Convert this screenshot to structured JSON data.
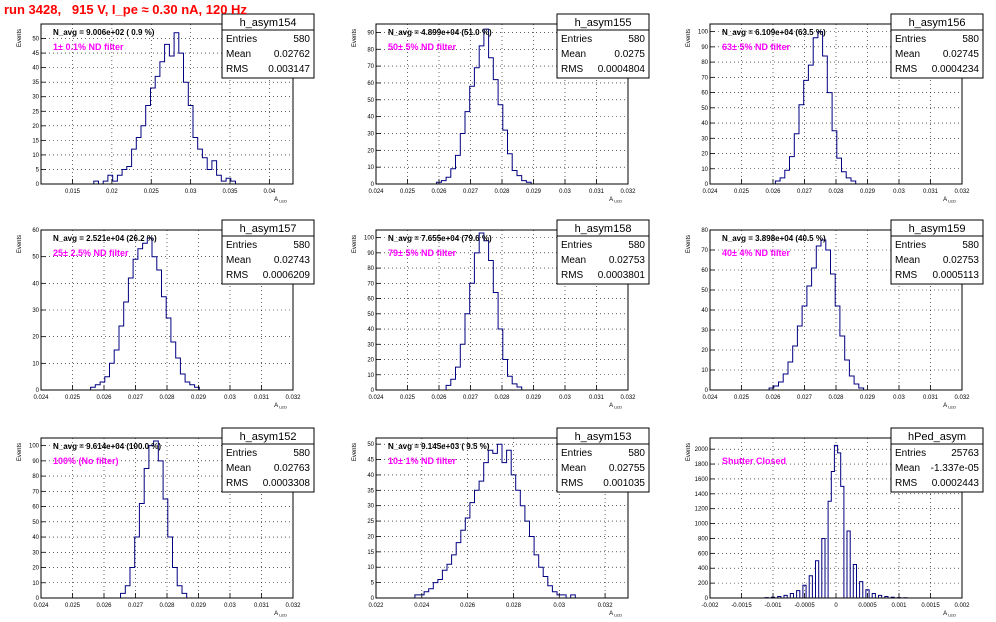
{
  "run_title": "run 3428,   915 V, I_pe ≈ 0.30 nA, 120 Hz",
  "colors": {
    "histogram": "#000080",
    "label": "#ff00ff",
    "title": "#ff0000",
    "grid": "#000000"
  },
  "chart_data": [
    {
      "type": "bar",
      "name": "h_asym154",
      "navg": "N_avg = 9.006e+02 ( 0.9 %)",
      "label": "1± 0.1% ND filter",
      "stats": {
        "entries": "580",
        "mean": "0.02762",
        "rms": "0.003147"
      },
      "ylabel": "Events",
      "xlabel": "A",
      "xlim": [
        0.011,
        0.043
      ],
      "ylim": [
        0,
        55
      ],
      "xticks": [
        "0.015",
        "0.02",
        "0.025",
        "0.03",
        "0.035",
        "0.04"
      ],
      "yticks": [
        "0",
        "5",
        "10",
        "15",
        "20",
        "25",
        "30",
        "35",
        "40",
        "45",
        "50"
      ],
      "grid": true,
      "legend": "top-right",
      "bins": [
        [
          0.018,
          1
        ],
        [
          0.0186,
          0
        ],
        [
          0.0192,
          1
        ],
        [
          0.0198,
          3
        ],
        [
          0.0204,
          1
        ],
        [
          0.021,
          3
        ],
        [
          0.0216,
          5
        ],
        [
          0.0222,
          6
        ],
        [
          0.0228,
          12
        ],
        [
          0.0234,
          16
        ],
        [
          0.024,
          20
        ],
        [
          0.0246,
          27
        ],
        [
          0.0252,
          33
        ],
        [
          0.0258,
          37
        ],
        [
          0.0264,
          42
        ],
        [
          0.027,
          48
        ],
        [
          0.0276,
          44
        ],
        [
          0.0282,
          52
        ],
        [
          0.0288,
          45
        ],
        [
          0.0294,
          35
        ],
        [
          0.03,
          27
        ],
        [
          0.0306,
          16
        ],
        [
          0.0312,
          12
        ],
        [
          0.0318,
          9
        ],
        [
          0.0324,
          5
        ],
        [
          0.033,
          8
        ],
        [
          0.0336,
          3
        ],
        [
          0.0342,
          1
        ],
        [
          0.0348,
          2
        ],
        [
          0.0354,
          1
        ]
      ]
    },
    {
      "type": "bar",
      "name": "h_asym155",
      "navg": "N_avg = 4.899e+04 (51.0 %)",
      "label": "50± 5% ND filter",
      "stats": {
        "entries": "580",
        "mean": "0.0275",
        "rms": "0.0004804"
      },
      "ylabel": "Events",
      "xlabel": "A",
      "xlim": [
        0.024,
        0.032
      ],
      "ylim": [
        0,
        95
      ],
      "xticks": [
        "0.024",
        "0.025",
        "0.026",
        "0.027",
        "0.028",
        "0.029",
        "0.03",
        "0.031",
        "0.032"
      ],
      "yticks": [
        "0",
        "10",
        "20",
        "30",
        "40",
        "50",
        "60",
        "70",
        "80",
        "90"
      ],
      "grid": true,
      "legend": "top-right",
      "bins": [
        [
          0.026,
          1
        ],
        [
          0.02615,
          2
        ],
        [
          0.0263,
          4
        ],
        [
          0.02645,
          9
        ],
        [
          0.0266,
          17
        ],
        [
          0.02675,
          30
        ],
        [
          0.0269,
          43
        ],
        [
          0.02705,
          58
        ],
        [
          0.0272,
          69
        ],
        [
          0.02735,
          82
        ],
        [
          0.0275,
          92
        ],
        [
          0.02765,
          75
        ],
        [
          0.0278,
          62
        ],
        [
          0.02795,
          47
        ],
        [
          0.0281,
          32
        ],
        [
          0.02825,
          18
        ],
        [
          0.0284,
          8
        ],
        [
          0.02855,
          5
        ],
        [
          0.0287,
          2
        ],
        [
          0.02885,
          1
        ]
      ]
    },
    {
      "type": "bar",
      "name": "h_asym156",
      "navg": "N_avg = 6.109e+04 (63.5 %)",
      "label": "63± 5% ND filter",
      "stats": {
        "entries": "580",
        "mean": "0.02745",
        "rms": "0.0004234"
      },
      "ylabel": "Events",
      "xlabel": "A",
      "xlim": [
        0.024,
        0.032
      ],
      "ylim": [
        0,
        105
      ],
      "xticks": [
        "0.024",
        "0.025",
        "0.026",
        "0.027",
        "0.028",
        "0.029",
        "0.03",
        "0.031",
        "0.032"
      ],
      "yticks": [
        "0",
        "10",
        "20",
        "30",
        "40",
        "50",
        "60",
        "70",
        "80",
        "90",
        "100"
      ],
      "grid": true,
      "legend": "top-right",
      "bins": [
        [
          0.02615,
          2
        ],
        [
          0.0263,
          4
        ],
        [
          0.02645,
          9
        ],
        [
          0.0266,
          18
        ],
        [
          0.02675,
          33
        ],
        [
          0.0269,
          52
        ],
        [
          0.02705,
          68
        ],
        [
          0.0272,
          78
        ],
        [
          0.02735,
          96
        ],
        [
          0.0275,
          100
        ],
        [
          0.02765,
          84
        ],
        [
          0.0278,
          60
        ],
        [
          0.02795,
          35
        ],
        [
          0.0281,
          17
        ],
        [
          0.02825,
          8
        ],
        [
          0.0284,
          4
        ],
        [
          0.02855,
          2
        ]
      ]
    },
    {
      "type": "bar",
      "name": "h_asym157",
      "navg": "N_avg = 2.521e+04 (26.2 %)",
      "label": "25± 2.5% ND filter",
      "stats": {
        "entries": "580",
        "mean": "0.02743",
        "rms": "0.0006209"
      },
      "ylabel": "Events",
      "xlabel": "A",
      "xlim": [
        0.024,
        0.032
      ],
      "ylim": [
        0,
        60
      ],
      "xticks": [
        "0.024",
        "0.025",
        "0.026",
        "0.027",
        "0.028",
        "0.029",
        "0.03",
        "0.031",
        "0.032"
      ],
      "yticks": [
        "0",
        "10",
        "20",
        "30",
        "40",
        "50",
        "60"
      ],
      "grid": true,
      "legend": "top-right",
      "bins": [
        [
          0.02565,
          1
        ],
        [
          0.0258,
          2
        ],
        [
          0.02595,
          3
        ],
        [
          0.0261,
          5
        ],
        [
          0.02625,
          10
        ],
        [
          0.0264,
          15
        ],
        [
          0.02655,
          24
        ],
        [
          0.0267,
          33
        ],
        [
          0.02685,
          42
        ],
        [
          0.027,
          49
        ],
        [
          0.02715,
          53
        ],
        [
          0.0273,
          55
        ],
        [
          0.02745,
          57
        ],
        [
          0.0276,
          50
        ],
        [
          0.02775,
          45
        ],
        [
          0.0279,
          35
        ],
        [
          0.02805,
          27
        ],
        [
          0.0282,
          18
        ],
        [
          0.02835,
          12
        ],
        [
          0.0285,
          6
        ],
        [
          0.02865,
          3
        ],
        [
          0.0288,
          2
        ],
        [
          0.02895,
          1
        ]
      ]
    },
    {
      "type": "bar",
      "name": "h_asym158",
      "navg": "N_avg = 7.655e+04 (79.6 %)",
      "label": "79± 5% ND filter",
      "stats": {
        "entries": "580",
        "mean": "0.02753",
        "rms": "0.0003801"
      },
      "ylabel": "Events",
      "xlabel": "A",
      "xlim": [
        0.024,
        0.032
      ],
      "ylim": [
        0,
        105
      ],
      "xticks": [
        "0.024",
        "0.025",
        "0.026",
        "0.027",
        "0.028",
        "0.029",
        "0.03",
        "0.031",
        "0.032"
      ],
      "yticks": [
        "0",
        "10",
        "20",
        "30",
        "40",
        "50",
        "60",
        "70",
        "80",
        "90",
        "100"
      ],
      "grid": true,
      "legend": "top-right",
      "bins": [
        [
          0.0263,
          3
        ],
        [
          0.02645,
          7
        ],
        [
          0.0266,
          15
        ],
        [
          0.02675,
          30
        ],
        [
          0.0269,
          50
        ],
        [
          0.02705,
          70
        ],
        [
          0.0272,
          90
        ],
        [
          0.02735,
          103
        ],
        [
          0.0275,
          98
        ],
        [
          0.02765,
          85
        ],
        [
          0.0278,
          64
        ],
        [
          0.02795,
          40
        ],
        [
          0.0281,
          20
        ],
        [
          0.02825,
          9
        ],
        [
          0.0284,
          4
        ],
        [
          0.02855,
          2
        ]
      ]
    },
    {
      "type": "bar",
      "name": "h_asym159",
      "navg": "N_avg = 3.898e+04 (40.5 %)",
      "label": "40± 4% ND filter",
      "stats": {
        "entries": "580",
        "mean": "0.02753",
        "rms": "0.0005113"
      },
      "ylabel": "Events",
      "xlabel": "A",
      "xlim": [
        0.024,
        0.032
      ],
      "ylim": [
        0,
        80
      ],
      "xticks": [
        "0.024",
        "0.025",
        "0.026",
        "0.027",
        "0.028",
        "0.029",
        "0.03",
        "0.031",
        "0.032"
      ],
      "yticks": [
        "0",
        "10",
        "20",
        "30",
        "40",
        "50",
        "60",
        "70",
        "80"
      ],
      "grid": true,
      "legend": "top-right",
      "bins": [
        [
          0.02595,
          1
        ],
        [
          0.0261,
          2
        ],
        [
          0.02625,
          4
        ],
        [
          0.0264,
          8
        ],
        [
          0.02655,
          14
        ],
        [
          0.0267,
          22
        ],
        [
          0.02685,
          32
        ],
        [
          0.027,
          42
        ],
        [
          0.02715,
          52
        ],
        [
          0.0273,
          61
        ],
        [
          0.02745,
          72
        ],
        [
          0.0276,
          75
        ],
        [
          0.02775,
          70
        ],
        [
          0.0279,
          58
        ],
        [
          0.02805,
          42
        ],
        [
          0.0282,
          27
        ],
        [
          0.02835,
          15
        ],
        [
          0.0285,
          7
        ],
        [
          0.02865,
          3
        ],
        [
          0.0288,
          1
        ]
      ]
    },
    {
      "type": "bar",
      "name": "h_asym152",
      "navg": "N_avg = 9.614e+04 (100.0 %)",
      "label": "100% (No filter)",
      "stats": {
        "entries": "580",
        "mean": "0.02763",
        "rms": "0.0003308"
      },
      "ylabel": "Events",
      "xlabel": "A",
      "xlim": [
        0.024,
        0.032
      ],
      "ylim": [
        0,
        105
      ],
      "xticks": [
        "0.024",
        "0.025",
        "0.026",
        "0.027",
        "0.028",
        "0.029",
        "0.03",
        "0.031",
        "0.032"
      ],
      "yticks": [
        "0",
        "10",
        "20",
        "30",
        "40",
        "50",
        "60",
        "70",
        "80",
        "90",
        "100"
      ],
      "grid": true,
      "legend": "top-right",
      "bins": [
        [
          0.0266,
          3
        ],
        [
          0.02675,
          8
        ],
        [
          0.0269,
          20
        ],
        [
          0.02705,
          40
        ],
        [
          0.0272,
          62
        ],
        [
          0.02735,
          85
        ],
        [
          0.0275,
          100
        ],
        [
          0.02765,
          103
        ],
        [
          0.0278,
          90
        ],
        [
          0.02795,
          65
        ],
        [
          0.0281,
          40
        ],
        [
          0.02825,
          20
        ],
        [
          0.0284,
          8
        ],
        [
          0.02855,
          3
        ]
      ]
    },
    {
      "type": "bar",
      "name": "h_asym153",
      "navg": "N_avg = 9.145e+03 ( 9.5 %)",
      "label": "10± 1% ND filter",
      "stats": {
        "entries": "580",
        "mean": "0.02755",
        "rms": "0.001035"
      },
      "ylabel": "Events",
      "xlabel": "A",
      "xlim": [
        0.022,
        0.033
      ],
      "ylim": [
        0,
        52
      ],
      "xticks": [
        "0.022",
        "0.024",
        "0.026",
        "0.028",
        "0.03",
        "0.032"
      ],
      "yticks": [
        "0",
        "5",
        "10",
        "15",
        "20",
        "25",
        "30",
        "35",
        "40",
        "45",
        "50"
      ],
      "grid": true,
      "legend": "top-right",
      "bins": [
        [
          0.0238,
          1
        ],
        [
          0.024,
          1
        ],
        [
          0.0242,
          2
        ],
        [
          0.0244,
          3
        ],
        [
          0.0246,
          5
        ],
        [
          0.0248,
          6
        ],
        [
          0.025,
          9
        ],
        [
          0.0252,
          11
        ],
        [
          0.0254,
          14
        ],
        [
          0.0256,
          18
        ],
        [
          0.0258,
          22
        ],
        [
          0.026,
          26
        ],
        [
          0.0262,
          31
        ],
        [
          0.0264,
          35
        ],
        [
          0.0266,
          38
        ],
        [
          0.0268,
          44
        ],
        [
          0.027,
          48
        ],
        [
          0.0272,
          47
        ],
        [
          0.0274,
          50
        ],
        [
          0.0276,
          44
        ],
        [
          0.0278,
          48
        ],
        [
          0.028,
          40
        ],
        [
          0.0282,
          35
        ],
        [
          0.0284,
          30
        ],
        [
          0.0286,
          25
        ],
        [
          0.0288,
          20
        ],
        [
          0.029,
          14
        ],
        [
          0.0292,
          10
        ],
        [
          0.0294,
          7
        ],
        [
          0.0296,
          4
        ],
        [
          0.0298,
          2
        ],
        [
          0.03,
          1
        ],
        [
          0.0302,
          1
        ],
        [
          0.0306,
          1
        ]
      ]
    },
    {
      "type": "bar",
      "name": "hPed_asym",
      "navg": "",
      "label": "Shutter Closed",
      "stats": {
        "entries": "25763",
        "mean": "-1.337e-05",
        "rms": "0.0002443"
      },
      "ylabel": "Events",
      "xlabel": "A",
      "xlim": [
        -0.002,
        0.002
      ],
      "ylim": [
        0,
        2150
      ],
      "xticks": [
        "-0.002",
        "-0.0015",
        "-0.001",
        "-0.0005",
        "0",
        "0.0005",
        "0.001",
        "0.0015",
        "0.002"
      ],
      "yticks": [
        "0",
        "200",
        "400",
        "600",
        "800",
        "1000",
        "1200",
        "1400",
        "1600",
        "1800",
        "2000"
      ],
      "grid": true,
      "legend": "top-right",
      "bins": [
        [
          -0.0011,
          5
        ],
        [
          -0.001,
          10
        ],
        [
          -0.0009,
          20
        ],
        [
          -0.0008,
          35
        ],
        [
          -0.0007,
          60
        ],
        [
          -0.0006,
          100
        ],
        [
          -0.0005,
          170
        ],
        [
          -0.0004,
          300
        ],
        [
          -0.0003,
          500
        ],
        [
          -0.0002,
          800
        ],
        [
          -0.0001,
          1300
        ],
        [
          -5e-05,
          1700
        ],
        [
          0.0,
          2050
        ],
        [
          5e-05,
          1950
        ],
        [
          0.0001,
          1500
        ],
        [
          0.0002,
          900
        ],
        [
          0.0003,
          450
        ],
        [
          0.0004,
          220
        ],
        [
          0.0005,
          110
        ],
        [
          0.0006,
          60
        ],
        [
          0.0007,
          35
        ],
        [
          0.0008,
          20
        ],
        [
          0.0009,
          10
        ],
        [
          0.001,
          6
        ],
        [
          0.0011,
          3
        ]
      ]
    }
  ]
}
